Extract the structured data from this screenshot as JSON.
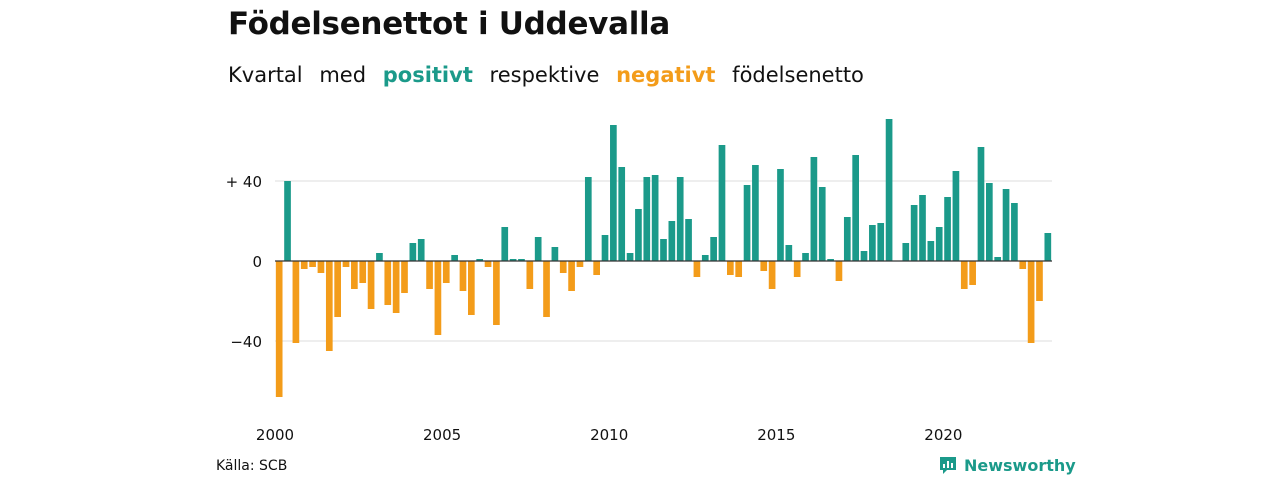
{
  "title": "Födelsenettot i Uddevalla",
  "subtitle": {
    "w1": "Kvartal",
    "w2": "med",
    "positive": "positivt",
    "w3": "respektive",
    "negative": "negativt",
    "w4": "födelsenetto"
  },
  "source": "Källa: SCB",
  "brand": {
    "name": "Newsworthy",
    "icon": "newsworthy-logo-icon"
  },
  "colors": {
    "positive": "#1b9a8a",
    "negative": "#f39c1a",
    "grid": "#dddddd",
    "axis": "#333333",
    "brand": "#1b9a8a"
  },
  "chart_data": {
    "type": "bar",
    "title": "Födelsenettot i Uddevalla",
    "xlabel": "",
    "ylabel": "",
    "x_start": "2000 Q1",
    "x_ticks": [
      "2000",
      "2005",
      "2010",
      "2015",
      "2020"
    ],
    "y_ticks": [
      {
        "value": 40,
        "label": "+ 40"
      },
      {
        "value": 0,
        "label": "0"
      },
      {
        "value": -40,
        "label": "−40"
      }
    ],
    "ylim": [
      -70,
      72
    ],
    "grid": true,
    "values": [
      -68,
      40,
      -41,
      -4,
      -3,
      -6,
      -45,
      -28,
      -3,
      -14,
      -11,
      -24,
      4,
      -22,
      -26,
      -16,
      9,
      11,
      -14,
      -37,
      -11,
      3,
      -15,
      -27,
      1,
      -3,
      -32,
      17,
      1,
      1,
      -14,
      12,
      -28,
      7,
      -6,
      -15,
      -3,
      42,
      -7,
      13,
      68,
      47,
      4,
      26,
      42,
      43,
      11,
      20,
      42,
      21,
      -8,
      3,
      12,
      58,
      -7,
      -8,
      38,
      48,
      -5,
      -14,
      46,
      8,
      -8,
      4,
      52,
      37,
      1,
      -10,
      22,
      53,
      5,
      18,
      19,
      71,
      0,
      9,
      28,
      33,
      10,
      17,
      32,
      45,
      -14,
      -12,
      57,
      39,
      2,
      36,
      29,
      -4,
      -41,
      -20,
      14
    ]
  }
}
